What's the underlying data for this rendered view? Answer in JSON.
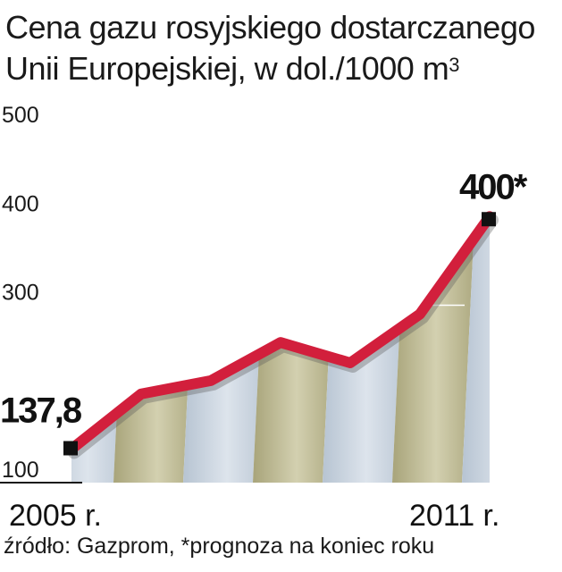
{
  "chart_data": {
    "type": "area",
    "title_line1": "Cena gazu rosyjskiego dostarczanego",
    "title_line2": "Unii Europejskiej, w dol./1000 m",
    "title_superscript": "3",
    "yticks": [
      100,
      300,
      400,
      500
    ],
    "ylim": [
      100,
      500
    ],
    "x": [
      2005,
      2006,
      2007,
      2008,
      2009,
      2010,
      2011
    ],
    "x_labels": [
      "2005 r.",
      "2011 r."
    ],
    "values": [
      137.8,
      200,
      215,
      258,
      235,
      290,
      400
    ],
    "data_labels": [
      {
        "index": 0,
        "text": "137,8"
      },
      {
        "index": 6,
        "text": "400*"
      }
    ],
    "line_color": "#d21f3c",
    "band_colors": [
      "#c9d3dd",
      "#bdb88f"
    ]
  },
  "source": "źródło: Gazprom, *prognoza na koniec roku"
}
